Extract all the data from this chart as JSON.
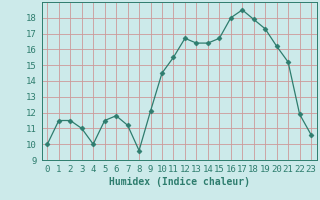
{
  "x": [
    0,
    1,
    2,
    3,
    4,
    5,
    6,
    7,
    8,
    9,
    10,
    11,
    12,
    13,
    14,
    15,
    16,
    17,
    18,
    19,
    20,
    21,
    22,
    23
  ],
  "y": [
    10,
    11.5,
    11.5,
    11.0,
    10.0,
    11.5,
    11.8,
    11.2,
    9.6,
    12.1,
    14.5,
    15.5,
    16.7,
    16.4,
    16.4,
    16.7,
    18.0,
    18.5,
    17.9,
    17.3,
    16.2,
    15.2,
    11.9,
    10.6
  ],
  "xlabel": "Humidex (Indice chaleur)",
  "ylim": [
    9,
    19
  ],
  "xlim": [
    -0.5,
    23.5
  ],
  "yticks": [
    9,
    10,
    11,
    12,
    13,
    14,
    15,
    16,
    17,
    18
  ],
  "xticks": [
    0,
    1,
    2,
    3,
    4,
    5,
    6,
    7,
    8,
    9,
    10,
    11,
    12,
    13,
    14,
    15,
    16,
    17,
    18,
    19,
    20,
    21,
    22,
    23
  ],
  "xtick_labels": [
    "0",
    "1",
    "2",
    "3",
    "4",
    "5",
    "6",
    "7",
    "8",
    "9",
    "10",
    "11",
    "12",
    "13",
    "14",
    "15",
    "16",
    "17",
    "18",
    "19",
    "20",
    "21",
    "22",
    "23"
  ],
  "line_color": "#2e7d6e",
  "marker": "D",
  "marker_size": 2.5,
  "bg_color": "#cceaea",
  "grid_minor_color": "#ddbaba",
  "grid_major_color": "#cc9999",
  "label_color": "#2e7d6e",
  "tick_color": "#2e7d6e",
  "xlabel_fontsize": 7,
  "tick_fontsize": 6.5
}
